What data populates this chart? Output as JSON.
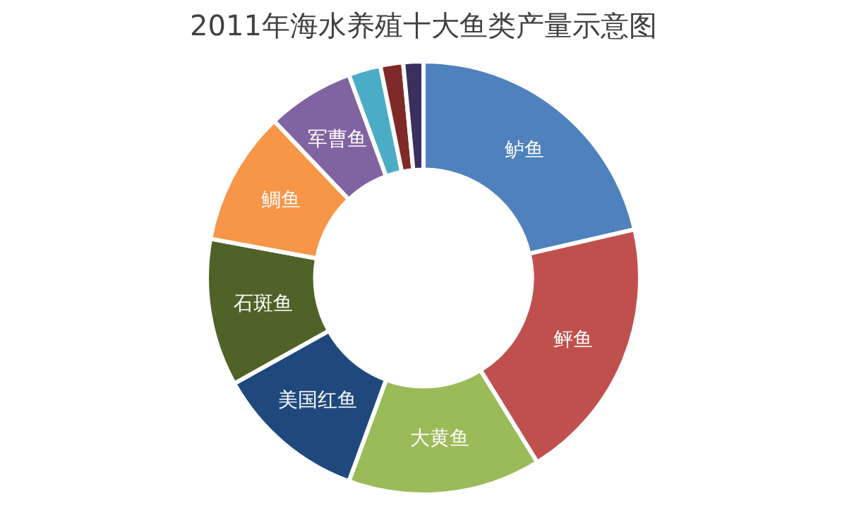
{
  "chart_data": {
    "type": "donut",
    "title": "2011年海水养殖十大鱼类产量示意图",
    "categories": [
      "鲈鱼",
      "鲆鱼",
      "大黄鱼",
      "美国红鱼",
      "石斑鱼",
      "鲷鱼",
      "军曹鱼",
      null,
      null,
      null
    ],
    "values": [
      21.4,
      19.8,
      14.4,
      11.3,
      11.0,
      10.0,
      6.5,
      2.4,
      1.7,
      1.5
    ],
    "colors": [
      "#4f81bd",
      "#c0504d",
      "#9bbb59",
      "#1f497d",
      "#4f6228",
      "#f79646",
      "#8064a2",
      "#4bacc6",
      "#7f2a28",
      "#3b2f5e"
    ]
  }
}
